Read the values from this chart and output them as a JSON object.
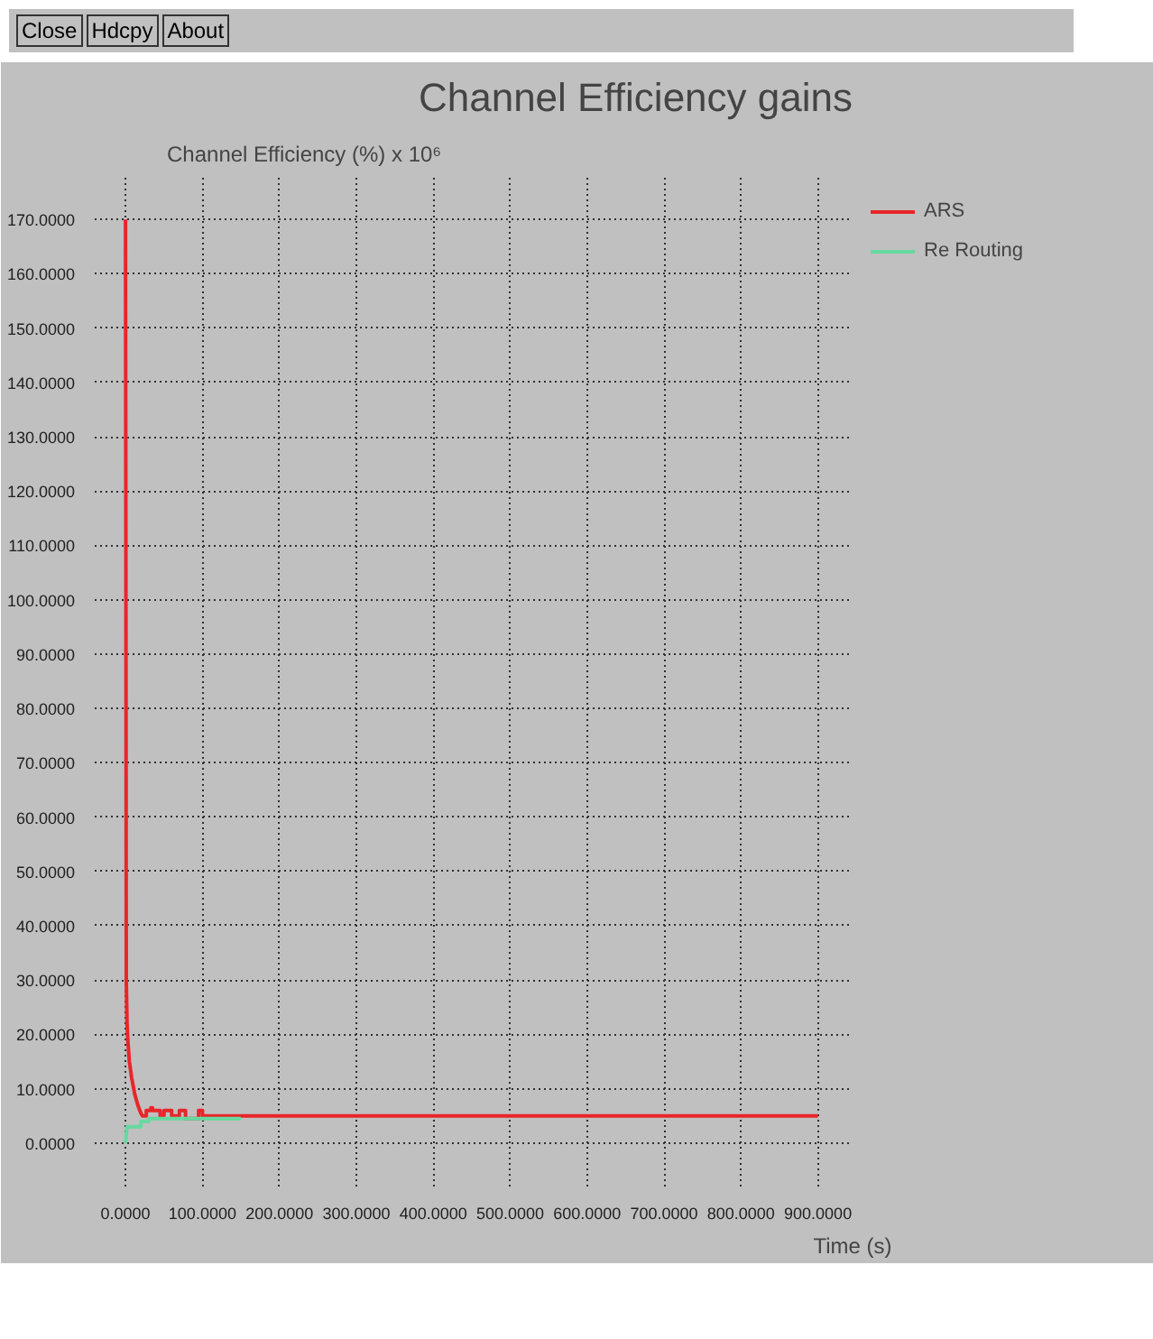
{
  "chart_data": {
    "type": "line",
    "title": "Channel Efficiency gains",
    "ylabel": "Channel Efficiency (%) x 10⁶",
    "xlabel": "Time (s)",
    "annotations": [
      "Close",
      "Hdcpy",
      "About"
    ],
    "xlim": [
      -40,
      945
    ],
    "ylim": [
      -8,
      178
    ],
    "xticks": [
      {
        "value": 0,
        "label": "0.0000"
      },
      {
        "value": 100,
        "label": "100.0000"
      },
      {
        "value": 200,
        "label": "200.0000"
      },
      {
        "value": 300,
        "label": "300.0000"
      },
      {
        "value": 400,
        "label": "400.0000"
      },
      {
        "value": 500,
        "label": "500.0000"
      },
      {
        "value": 600,
        "label": "600.0000"
      },
      {
        "value": 700,
        "label": "700.0000"
      },
      {
        "value": 800,
        "label": "800.0000"
      },
      {
        "value": 900,
        "label": "900.0000"
      }
    ],
    "yticks": [
      {
        "value": 0,
        "label": "0.0000"
      },
      {
        "value": 10,
        "label": "10.0000"
      },
      {
        "value": 20,
        "label": "20.0000"
      },
      {
        "value": 30,
        "label": "30.0000"
      },
      {
        "value": 40,
        "label": "40.0000"
      },
      {
        "value": 50,
        "label": "50.0000"
      },
      {
        "value": 60,
        "label": "60.0000"
      },
      {
        "value": 70,
        "label": "70.0000"
      },
      {
        "value": 80,
        "label": "80.0000"
      },
      {
        "value": 90,
        "label": "90.0000"
      },
      {
        "value": 100,
        "label": "100.0000"
      },
      {
        "value": 110,
        "label": "110.0000"
      },
      {
        "value": 120,
        "label": "120.0000"
      },
      {
        "value": 130,
        "label": "130.0000"
      },
      {
        "value": 140,
        "label": "140.0000"
      },
      {
        "value": 150,
        "label": "150.0000"
      },
      {
        "value": 160,
        "label": "160.0000"
      },
      {
        "value": 170,
        "label": "170.0000"
      }
    ],
    "grid": true,
    "legend": "top right",
    "line_style": "solid",
    "series": [
      {
        "name": "ARS",
        "color": "#e8262a",
        "x": [
          0,
          0.5,
          1,
          2,
          3,
          5,
          8,
          12,
          16,
          20,
          22,
          27,
          27,
          33,
          33,
          35,
          35,
          45,
          45,
          50,
          50,
          60,
          60,
          70,
          70,
          78,
          78,
          95,
          95,
          100,
          100,
          900
        ],
        "values": [
          170,
          110,
          30,
          22,
          19,
          15,
          12,
          9,
          7,
          5.5,
          5,
          5,
          6,
          6,
          6.5,
          6.5,
          6,
          6,
          5,
          5,
          6,
          6,
          5,
          5,
          6,
          6,
          4.5,
          4.5,
          6,
          6,
          5,
          5
        ]
      },
      {
        "name": "Re Routing",
        "color": "#66d9a0",
        "x": [
          0,
          2,
          20,
          20,
          30,
          30,
          150
        ],
        "values": [
          0,
          3,
          3,
          4,
          4,
          4.5,
          4.5
        ]
      }
    ]
  }
}
